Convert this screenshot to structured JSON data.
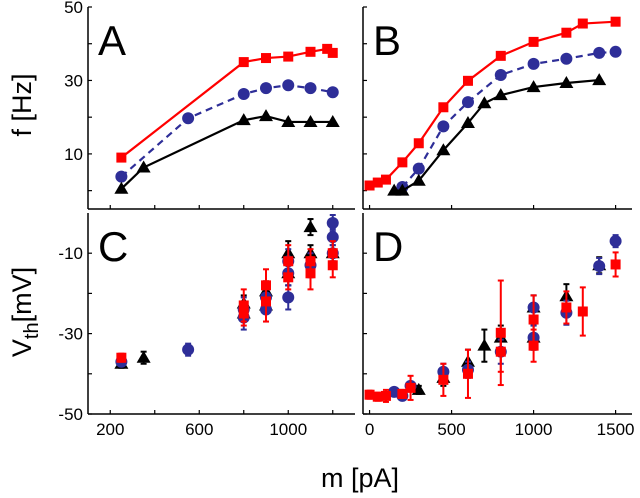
{
  "chart_data": [
    {
      "id": "A",
      "type": "line",
      "panel_label": "A",
      "ylabel": "f  [Hz]",
      "xlabel": "",
      "xlim": [
        100,
        1300
      ],
      "ylim": [
        -5,
        50
      ],
      "xticks": [
        200,
        400,
        600,
        800,
        1000,
        1200
      ],
      "xtick_labels": [],
      "yticks": [
        0,
        10,
        20,
        30,
        40,
        50
      ],
      "ytick_labels": [
        "10",
        "30",
        "50"
      ],
      "ytick_label_values": [
        10,
        30,
        50
      ],
      "series": [
        {
          "name": "red-squares",
          "color": "#ff0000",
          "marker": "square",
          "dash": false,
          "points": [
            [
              250,
              9.0
            ],
            [
              800,
              35.0
            ],
            [
              900,
              36.1
            ],
            [
              1000,
              36.5
            ],
            [
              1100,
              37.8
            ],
            [
              1175,
              38.6
            ],
            [
              1200,
              37.5
            ]
          ]
        },
        {
          "name": "blue-circles",
          "color": "#2e2e98",
          "marker": "circle",
          "dash": true,
          "points": [
            [
              250,
              3.8
            ],
            [
              550,
              19.7
            ],
            [
              800,
              26.3
            ],
            [
              900,
              27.9
            ],
            [
              1000,
              28.7
            ],
            [
              1100,
              27.9
            ],
            [
              1200,
              26.8
            ]
          ]
        },
        {
          "name": "black-triangles",
          "color": "#000000",
          "marker": "triangle",
          "dash": false,
          "points": [
            [
              250,
              0.5
            ],
            [
              350,
              6.3
            ],
            [
              800,
              19.2
            ],
            [
              900,
              20.3
            ],
            [
              1000,
              18.7
            ],
            [
              1100,
              18.7
            ],
            [
              1200,
              18.7
            ]
          ]
        }
      ]
    },
    {
      "id": "B",
      "type": "line",
      "panel_label": "B",
      "xlim": [
        -40,
        1600
      ],
      "ylim": [
        -5,
        50
      ],
      "xticks": [
        0,
        500,
        1000,
        1500
      ],
      "xtick_labels": [],
      "yticks": [
        0,
        10,
        20,
        30,
        40,
        50
      ],
      "ytick_labels": [],
      "ytick_label_values": [],
      "series": [
        {
          "name": "red-squares",
          "color": "#ff0000",
          "marker": "square",
          "dash": false,
          "points": [
            [
              0,
              1.4
            ],
            [
              50,
              2.2
            ],
            [
              100,
              3.0
            ],
            [
              200,
              7.7
            ],
            [
              300,
              12.9
            ],
            [
              450,
              22.7
            ],
            [
              600,
              29.9
            ],
            [
              800,
              36.7
            ],
            [
              1000,
              40.5
            ],
            [
              1200,
              43.0
            ],
            [
              1300,
              45.5
            ],
            [
              1500,
              46.0
            ]
          ]
        },
        {
          "name": "blue-circles",
          "color": "#2e2e98",
          "marker": "circle",
          "dash": true,
          "points": [
            [
              200,
              1.0
            ],
            [
              300,
              6.0
            ],
            [
              450,
              17.5
            ],
            [
              600,
              24.1
            ],
            [
              800,
              31.5
            ],
            [
              1000,
              34.5
            ],
            [
              1200,
              35.9
            ],
            [
              1400,
              37.5
            ],
            [
              1500,
              37.8
            ]
          ]
        },
        {
          "name": "black-triangles",
          "color": "#000000",
          "marker": "triangle",
          "dash": false,
          "points": [
            [
              150,
              0
            ],
            [
              200,
              0
            ],
            [
              300,
              2.7
            ],
            [
              450,
              11.0
            ],
            [
              600,
              18.4
            ],
            [
              700,
              23.8
            ],
            [
              800,
              26.0
            ],
            [
              1000,
              28.2
            ],
            [
              1200,
              29.3
            ],
            [
              1400,
              30.1
            ]
          ]
        }
      ]
    },
    {
      "id": "C",
      "type": "scatter",
      "panel_label": "C",
      "xlim": [
        100,
        1300
      ],
      "ylim": [
        -50,
        0
      ],
      "xticks": [
        200,
        400,
        600,
        800,
        1000,
        1200
      ],
      "xtick_labels": [
        "200",
        "600",
        "1000"
      ],
      "xtick_label_values": [
        200,
        600,
        1000
      ],
      "yticks": [
        -50,
        -40,
        -30,
        -20,
        -10
      ],
      "ytick_labels": [
        "-10",
        "-30",
        "-50"
      ],
      "ytick_label_values": [
        -10,
        -30,
        -50
      ],
      "series": [
        {
          "name": "black-triangles",
          "color": "#000000",
          "marker": "triangle",
          "points": [
            [
              250,
              -37.5,
              1
            ],
            [
              350,
              -36,
              1.5
            ],
            [
              800,
              -22.5,
              2
            ],
            [
              800,
              -25,
              2
            ],
            [
              900,
              -19.5,
              2.5
            ],
            [
              900,
              -23,
              2
            ],
            [
              1000,
              -10,
              3
            ],
            [
              1000,
              -15,
              3
            ],
            [
              1100,
              -3.5,
              2
            ],
            [
              1100,
              -10,
              2
            ],
            [
              1200,
              -10,
              3
            ]
          ]
        },
        {
          "name": "blue-circles",
          "color": "#2e2e98",
          "marker": "circle",
          "points": [
            [
              250,
              -37,
              1
            ],
            [
              550,
              -34,
              1.5
            ],
            [
              800,
              -26,
              3
            ],
            [
              800,
              -24,
              3
            ],
            [
              900,
              -24,
              3
            ],
            [
              900,
              -21,
              3
            ],
            [
              1000,
              -21,
              3
            ],
            [
              1000,
              -15,
              3
            ],
            [
              1000,
              -12,
              3
            ],
            [
              1100,
              -13,
              3
            ],
            [
              1200,
              -2.5,
              2
            ],
            [
              1200,
              -6,
              2
            ],
            [
              1200,
              -10,
              2
            ]
          ]
        },
        {
          "name": "red-squares",
          "color": "#ff0000",
          "marker": "square",
          "points": [
            [
              250,
              -36,
              1
            ],
            [
              800,
              -23,
              4
            ],
            [
              800,
              -25,
              3
            ],
            [
              900,
              -22,
              5
            ],
            [
              900,
              -18,
              4
            ],
            [
              1000,
              -12,
              4
            ],
            [
              1000,
              -16,
              3
            ],
            [
              1100,
              -15,
              4
            ],
            [
              1100,
              -12,
              3
            ],
            [
              1200,
              -13,
              3
            ],
            [
              1200,
              -10,
              3
            ]
          ]
        }
      ]
    },
    {
      "id": "D",
      "type": "scatter",
      "panel_label": "D",
      "xlim": [
        -40,
        1600
      ],
      "ylim": [
        -50,
        0
      ],
      "xticks": [
        0,
        500,
        1000,
        1500
      ],
      "xtick_labels": [
        "0",
        "500",
        "1000",
        "1500"
      ],
      "xtick_label_values": [
        0,
        500,
        1000,
        1500
      ],
      "yticks": [
        -50,
        -40,
        -30,
        -20,
        -10
      ],
      "ytick_labels": [],
      "ytick_label_values": [],
      "series": [
        {
          "name": "black-triangles",
          "color": "#000000",
          "marker": "triangle",
          "points": [
            [
              300,
              -44,
              1
            ],
            [
              450,
              -41,
              2
            ],
            [
              600,
              -37,
              3
            ],
            [
              700,
              -33,
              4
            ],
            [
              800,
              -31,
              3
            ],
            [
              1000,
              -31,
              3
            ],
            [
              1000,
              -23.5,
              3
            ],
            [
              1200,
              -20.7,
              3
            ],
            [
              1400,
              -13,
              2
            ]
          ]
        },
        {
          "name": "blue-circles",
          "color": "#2e2e98",
          "marker": "circle",
          "points": [
            [
              150,
              -44.5,
              1
            ],
            [
              200,
              -45.5,
              1
            ],
            [
              250,
              -43,
              1
            ],
            [
              450,
              -39.5,
              2
            ],
            [
              600,
              -39,
              2
            ],
            [
              800,
              -34.5,
              3
            ],
            [
              1000,
              -23.5,
              3
            ],
            [
              1000,
              -31,
              3
            ],
            [
              1200,
              -24.8,
              3
            ],
            [
              1400,
              -13.2,
              2
            ],
            [
              1500,
              -7,
              1.5
            ]
          ]
        },
        {
          "name": "red-squares",
          "color": "#ff0000",
          "marker": "square",
          "points": [
            [
              0,
              -45.2,
              1
            ],
            [
              50,
              -45.7,
              1
            ],
            [
              100,
              -45.5,
              1.5
            ],
            [
              200,
              -45,
              1
            ],
            [
              250,
              -43.5,
              3
            ],
            [
              450,
              -41.5,
              4
            ],
            [
              600,
              -40,
              6
            ],
            [
              800,
              -29.8,
              13
            ],
            [
              800,
              -34.5,
              5
            ],
            [
              1000,
              -26.5,
              6
            ],
            [
              1000,
              -33,
              4
            ],
            [
              1200,
              -23.5,
              4
            ],
            [
              1300,
              -24.5,
              6
            ],
            [
              1500,
              -12.8,
              3
            ]
          ]
        }
      ]
    }
  ],
  "labels": {
    "y_top": "f  [Hz]",
    "y_bottom_main": "V",
    "y_bottom_sub": "th",
    "y_bottom_unit": "[mV]",
    "x_bottom": "m [pA]"
  }
}
